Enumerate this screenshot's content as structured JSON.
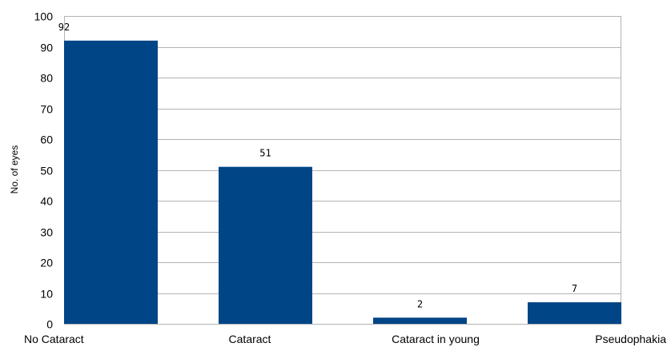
{
  "chart_data": {
    "type": "bar",
    "categories": [
      "No Cataract",
      "Cataract",
      "Cataract in young",
      "Pseudophakia"
    ],
    "values": [
      92,
      51,
      2,
      7
    ],
    "title": "",
    "xlabel": "",
    "ylabel": "No. of eyes",
    "ylim": [
      0,
      100
    ],
    "yticks": [
      0,
      10,
      20,
      30,
      40,
      50,
      60,
      70,
      80,
      90,
      100
    ],
    "grid": true,
    "legend": "none",
    "bar_color": "#004586",
    "grid_color": "#b3b3b3"
  }
}
